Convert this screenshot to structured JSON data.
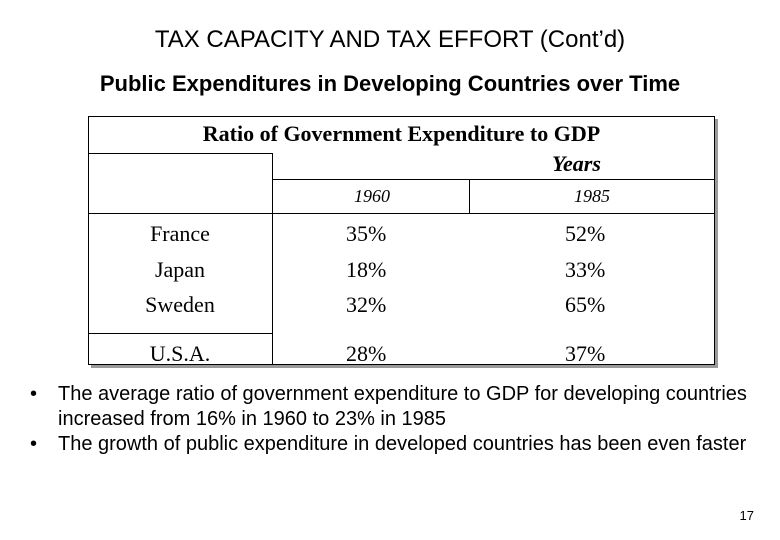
{
  "title": "TAX CAPACITY AND TAX EFFORT (Cont’d)",
  "subtitle": "Public Expenditures in Developing Countries over Time",
  "table": {
    "title": "Ratio of Government Expenditure to GDP",
    "years_label": "Years",
    "year_headers": [
      "1960",
      "1985"
    ],
    "rows": [
      {
        "country": "France",
        "v1960": "35%",
        "v1985": "52%"
      },
      {
        "country": "Japan",
        "v1960": "18%",
        "v1985": "33%"
      },
      {
        "country": "Sweden",
        "v1960": "32%",
        "v1985": "65%"
      },
      {
        "country": "U.S.A.",
        "v1960": "28%",
        "v1985": "37%"
      }
    ]
  },
  "bullets": [
    {
      "symbol": "•",
      "text": "The average ratio of government expenditure to GDP for developing countries increased from 16% in 1960 to 23% in 1985"
    },
    {
      "symbol": "•",
      "text": "The growth of public expenditure in developed countries has been even faster"
    }
  ],
  "page_number": "17"
}
